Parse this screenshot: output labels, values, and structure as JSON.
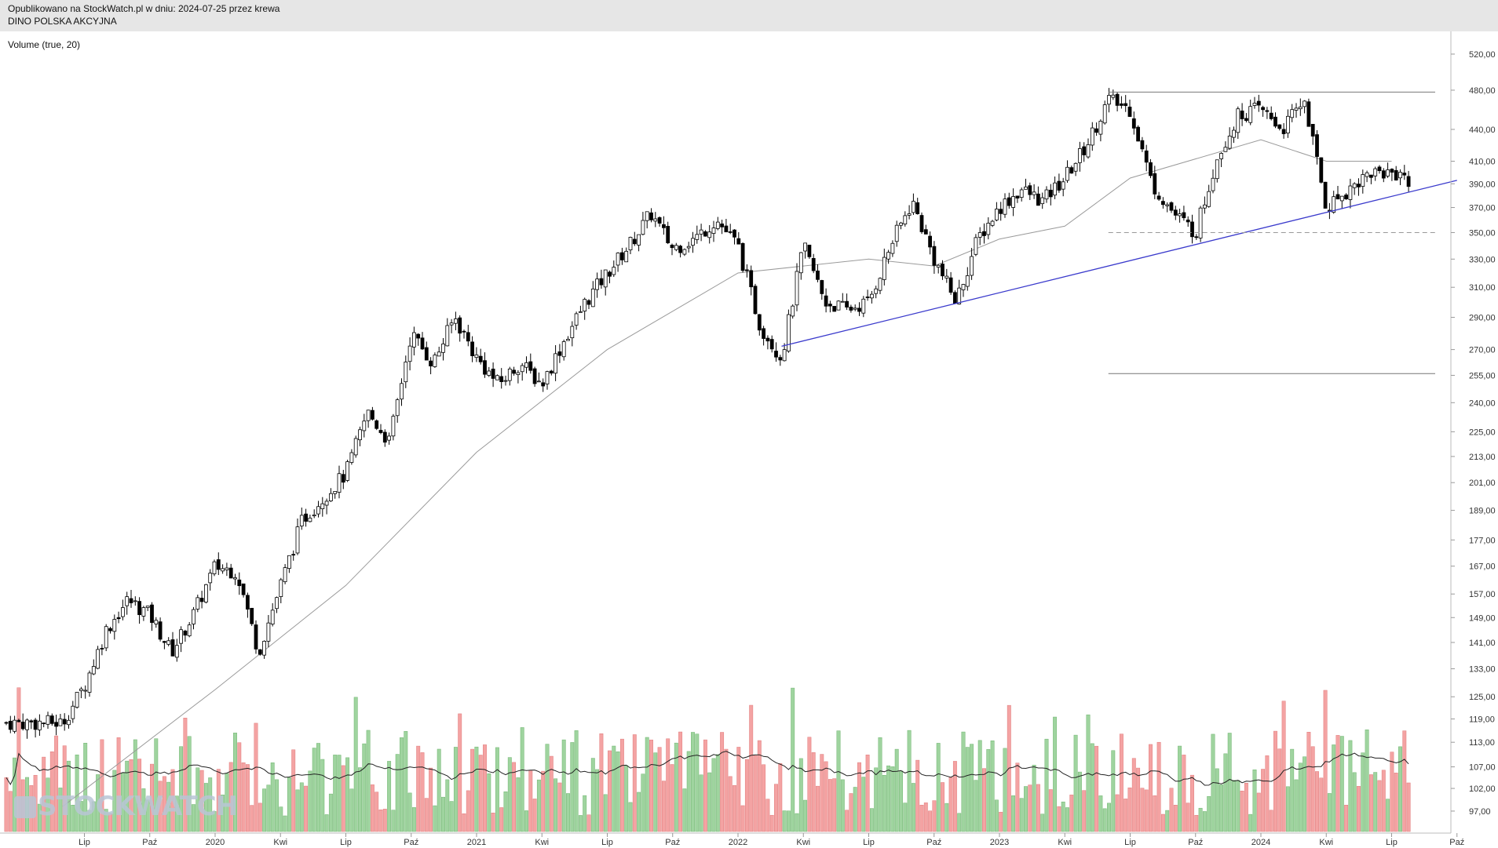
{
  "header": {
    "published": "Opublikowano na StockWatch.pl w dniu: 2024-07-25 przez krewa",
    "instrument": "DINO POLSKA AKCYJNA"
  },
  "volume_label": "Volume (true, 20)",
  "logo_text": "STOCKWATCH",
  "colors": {
    "candle_up": "#ffffff",
    "candle_down": "#000000",
    "volume_up": "#9fd49f",
    "volume_down": "#f4a3a3",
    "moving_average": "#9a9a9a",
    "trendline": "#3a3acc",
    "header_bg": "#e6e6e6"
  },
  "chart_data": {
    "type": "candlestick",
    "y_scale": "log",
    "ylim": [
      94,
      530
    ],
    "y_ticks": [
      "520,00",
      "480,00",
      "440,00",
      "410,00",
      "390,00",
      "370,00",
      "350,00",
      "330,00",
      "310,00",
      "290,00",
      "270,00",
      "255,00",
      "240,00",
      "225,00",
      "213,00",
      "201,00",
      "189,00",
      "177,00",
      "167,00",
      "157,00",
      "149,00",
      "141,00",
      "133,00",
      "125,00",
      "119,00",
      "113,00",
      "107,00",
      "102,00",
      "97,00"
    ],
    "x_ticks": [
      "Lip",
      "Paź",
      "2020",
      "Kwi",
      "Lip",
      "Paź",
      "2021",
      "Kwi",
      "Lip",
      "Paź",
      "2022",
      "Kwi",
      "Lip",
      "Paź",
      "2023",
      "Kwi",
      "Lip",
      "Paź",
      "2024",
      "Kwi",
      "Lip",
      "Paź"
    ],
    "price_path": [
      {
        "date": "2019-06",
        "close": 118
      },
      {
        "date": "2019-07",
        "close": 128
      },
      {
        "date": "2019-08",
        "close": 145
      },
      {
        "date": "2019-09",
        "close": 155
      },
      {
        "date": "2019-10",
        "close": 150
      },
      {
        "date": "2019-11",
        "close": 138
      },
      {
        "date": "2019-12",
        "close": 150
      },
      {
        "date": "2020-01",
        "close": 167
      },
      {
        "date": "2020-02",
        "close": 165
      },
      {
        "date": "2020-03",
        "close": 138
      },
      {
        "date": "2020-04",
        "close": 160
      },
      {
        "date": "2020-05",
        "close": 185
      },
      {
        "date": "2020-06",
        "close": 195
      },
      {
        "date": "2020-07",
        "close": 205
      },
      {
        "date": "2020-08",
        "close": 235
      },
      {
        "date": "2020-09",
        "close": 220
      },
      {
        "date": "2020-10",
        "close": 280
      },
      {
        "date": "2020-11",
        "close": 262
      },
      {
        "date": "2020-12",
        "close": 290
      },
      {
        "date": "2021-01",
        "close": 265
      },
      {
        "date": "2021-02",
        "close": 250
      },
      {
        "date": "2021-03",
        "close": 262
      },
      {
        "date": "2021-04",
        "close": 250
      },
      {
        "date": "2021-05",
        "close": 275
      },
      {
        "date": "2021-06",
        "close": 300
      },
      {
        "date": "2021-07",
        "close": 320
      },
      {
        "date": "2021-08",
        "close": 340
      },
      {
        "date": "2021-09",
        "close": 365
      },
      {
        "date": "2021-10",
        "close": 338
      },
      {
        "date": "2021-11",
        "close": 345
      },
      {
        "date": "2021-12",
        "close": 360
      },
      {
        "date": "2022-01",
        "close": 340
      },
      {
        "date": "2022-02",
        "close": 285
      },
      {
        "date": "2022-03",
        "close": 265
      },
      {
        "date": "2022-04",
        "close": 340
      },
      {
        "date": "2022-05",
        "close": 300
      },
      {
        "date": "2022-06",
        "close": 295
      },
      {
        "date": "2022-07",
        "close": 300
      },
      {
        "date": "2022-08",
        "close": 340
      },
      {
        "date": "2022-09",
        "close": 375
      },
      {
        "date": "2022-10",
        "close": 330
      },
      {
        "date": "2022-11",
        "close": 300
      },
      {
        "date": "2022-12",
        "close": 345
      },
      {
        "date": "2023-01",
        "close": 370
      },
      {
        "date": "2023-02",
        "close": 385
      },
      {
        "date": "2023-03",
        "close": 375
      },
      {
        "date": "2023-04",
        "close": 395
      },
      {
        "date": "2023-05",
        "close": 425
      },
      {
        "date": "2023-06",
        "close": 470
      },
      {
        "date": "2023-07",
        "close": 460
      },
      {
        "date": "2023-08",
        "close": 390
      },
      {
        "date": "2023-09",
        "close": 365
      },
      {
        "date": "2023-10",
        "close": 350
      },
      {
        "date": "2023-11",
        "close": 415
      },
      {
        "date": "2023-12",
        "close": 455
      },
      {
        "date": "2024-01",
        "close": 460
      },
      {
        "date": "2024-02",
        "close": 440
      },
      {
        "date": "2024-03",
        "close": 470
      },
      {
        "date": "2024-04",
        "close": 370
      },
      {
        "date": "2024-05",
        "close": 385
      },
      {
        "date": "2024-06",
        "close": 400
      },
      {
        "date": "2024-07-24",
        "close": 400
      },
      {
        "date": "2024-07-25",
        "close": 355
      }
    ],
    "moving_average_levels": [
      {
        "date": "2019-06",
        "value": 98
      },
      {
        "date": "2020-01",
        "value": 127
      },
      {
        "date": "2020-07",
        "value": 160
      },
      {
        "date": "2021-01",
        "value": 215
      },
      {
        "date": "2021-07",
        "value": 270
      },
      {
        "date": "2022-01",
        "value": 320
      },
      {
        "date": "2022-07",
        "value": 330
      },
      {
        "date": "2022-10",
        "value": 325
      },
      {
        "date": "2023-01",
        "value": 345
      },
      {
        "date": "2023-04",
        "value": 355
      },
      {
        "date": "2023-07",
        "value": 395
      },
      {
        "date": "2024-01",
        "value": 430
      },
      {
        "date": "2024-04",
        "value": 410
      },
      {
        "date": "2024-07",
        "value": 410
      }
    ],
    "annotations": [
      {
        "kind": "trendline",
        "from": {
          "date": "2022-03",
          "price": 272
        },
        "to": {
          "date": "2024-10",
          "price": 393
        }
      },
      {
        "kind": "horizontal",
        "price": 478,
        "from": "2023-06",
        "to": "2024-09"
      },
      {
        "kind": "horizontal-dashed",
        "price": 350,
        "from": "2023-06",
        "to": "2024-09"
      },
      {
        "kind": "horizontal",
        "price": 256,
        "from": "2023-06",
        "to": "2024-09"
      }
    ],
    "volume_moving_average_period": 20
  }
}
